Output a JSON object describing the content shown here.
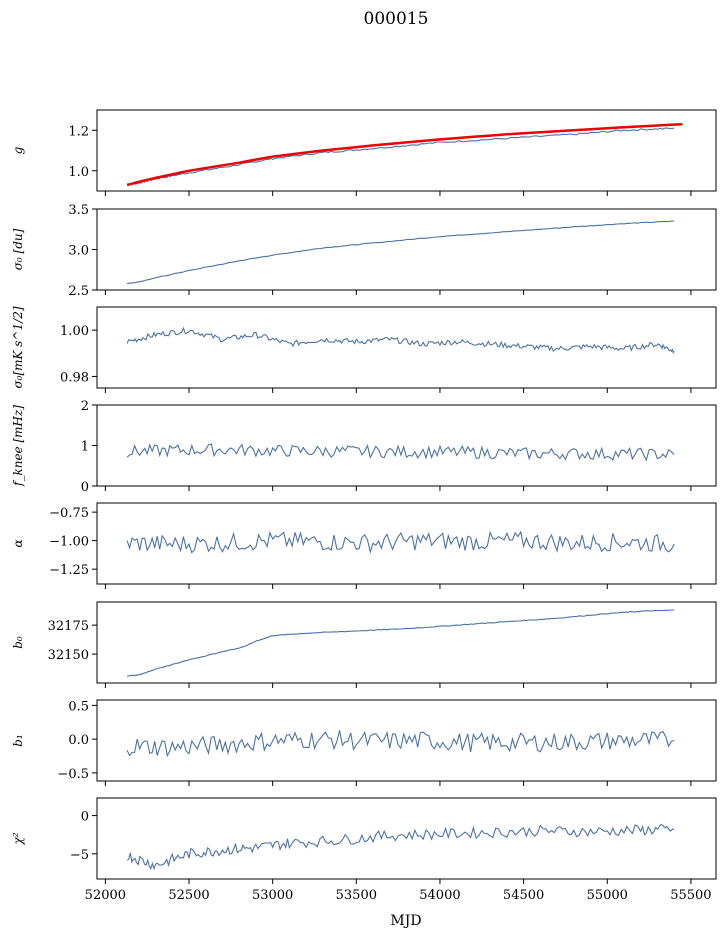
{
  "figure_title": "000015",
  "xlabel": "MJD",
  "colors": {
    "series": "#4c72a6",
    "fit": "#ee0000",
    "axis": "#000000"
  },
  "chart_data": [
    {
      "type": "line",
      "ylabel": "g",
      "xlim": [
        51950,
        55650
      ],
      "ylim": [
        0.9,
        1.3
      ],
      "yticks": [
        1.0,
        1.2
      ],
      "ytick_labels": [
        "1.0",
        "1.2"
      ],
      "xticks": [
        52000,
        52500,
        53000,
        53500,
        54000,
        54500,
        55000,
        55500
      ],
      "series": [
        {
          "x": [
            52130,
            52200,
            52300,
            52500,
            52800,
            53000,
            53300,
            53600,
            54000,
            54400,
            54800,
            55100,
            55400
          ],
          "y": [
            0.93,
            0.94,
            0.96,
            0.99,
            1.03,
            1.06,
            1.09,
            1.11,
            1.14,
            1.16,
            1.18,
            1.2,
            1.21
          ]
        },
        {
          "style": "fit",
          "x": [
            52130,
            52200,
            52300,
            52500,
            52800,
            53000,
            53300,
            53600,
            54000,
            54400,
            54800,
            55100,
            55450
          ],
          "y": [
            0.93,
            0.945,
            0.965,
            1.0,
            1.04,
            1.07,
            1.1,
            1.125,
            1.155,
            1.18,
            1.2,
            1.215,
            1.23
          ]
        }
      ]
    },
    {
      "type": "line",
      "ylabel": "σ₀ [du]",
      "xlim": [
        51950,
        55650
      ],
      "ylim": [
        2.5,
        3.5
      ],
      "yticks": [
        2.5,
        3.0,
        3.5
      ],
      "ytick_labels": [
        "2.5",
        "3.0",
        "3.5"
      ],
      "xticks": [
        52000,
        52500,
        53000,
        53500,
        54000,
        54500,
        55000,
        55500
      ],
      "series": [
        {
          "x": [
            52130,
            52200,
            52300,
            52500,
            52800,
            53000,
            53300,
            53600,
            54000,
            54400,
            54800,
            55100,
            55400
          ],
          "y": [
            2.58,
            2.6,
            2.65,
            2.74,
            2.86,
            2.93,
            3.02,
            3.08,
            3.16,
            3.22,
            3.28,
            3.32,
            3.35
          ]
        }
      ]
    },
    {
      "type": "line",
      "ylabel": "σ₀[mK s^1/2]",
      "xlim": [
        51950,
        55650
      ],
      "ylim": [
        0.975,
        1.01
      ],
      "yticks": [
        0.98,
        1.0
      ],
      "ytick_labels": [
        "0.98",
        "1.00"
      ],
      "xticks": [
        52000,
        52500,
        53000,
        53500,
        54000,
        54500,
        55000,
        55500
      ],
      "series": [
        {
          "x": [
            52130,
            52300,
            52500,
            52700,
            52900,
            53100,
            53300,
            53500,
            53700,
            53900,
            54100,
            54300,
            54500,
            54700,
            54900,
            55100,
            55300,
            55400
          ],
          "y": [
            0.995,
            0.998,
            1.0,
            0.996,
            0.998,
            0.994,
            0.996,
            0.995,
            0.996,
            0.994,
            0.995,
            0.994,
            0.993,
            0.992,
            0.993,
            0.992,
            0.994,
            0.991
          ]
        }
      ]
    },
    {
      "type": "line",
      "ylabel": "f_knee [mHz]",
      "xlim": [
        51950,
        55650
      ],
      "ylim": [
        0,
        2
      ],
      "yticks": [
        0,
        1,
        2
      ],
      "ytick_labels": [
        "0",
        "1",
        "2"
      ],
      "xticks": [
        52000,
        52500,
        53000,
        53500,
        54000,
        54500,
        55000,
        55500
      ],
      "series": [
        {
          "x": [
            52130,
            52400,
            52700,
            53000,
            53300,
            53600,
            53900,
            54200,
            54500,
            54800,
            55100,
            55400
          ],
          "y": [
            0.85,
            0.88,
            0.9,
            0.87,
            0.86,
            0.85,
            0.84,
            0.83,
            0.8,
            0.8,
            0.79,
            0.78
          ]
        }
      ]
    },
    {
      "type": "line",
      "ylabel": "α",
      "xlim": [
        51950,
        55650
      ],
      "ylim": [
        -1.38,
        -0.67
      ],
      "yticks": [
        -1.25,
        -1.0,
        -0.75
      ],
      "ytick_labels": [
        "−1.25",
        "−1.00",
        "−0.75"
      ],
      "xticks": [
        52000,
        52500,
        53000,
        53500,
        54000,
        54500,
        55000,
        55500
      ],
      "series": [
        {
          "x": [
            52130,
            52400,
            52700,
            53000,
            53300,
            53600,
            53900,
            54200,
            54500,
            54800,
            55100,
            55400
          ],
          "y": [
            -1.02,
            -1.03,
            -1.02,
            -1.0,
            -1.01,
            -1.02,
            -1.0,
            -1.01,
            -1.0,
            -1.02,
            -1.01,
            -1.03
          ]
        }
      ]
    },
    {
      "type": "line",
      "ylabel": "b₀",
      "xlim": [
        51950,
        55650
      ],
      "ylim": [
        32125,
        32195
      ],
      "yticks": [
        32150,
        32175
      ],
      "ytick_labels": [
        "32150",
        "32175"
      ],
      "xticks": [
        52000,
        52500,
        53000,
        53500,
        54000,
        54500,
        55000,
        55500
      ],
      "series": [
        {
          "x": [
            52130,
            52200,
            52300,
            52500,
            52700,
            52820,
            52900,
            53000,
            53200,
            53500,
            53800,
            54100,
            54400,
            54700,
            55000,
            55200,
            55400
          ],
          "y": [
            32131,
            32132,
            32137,
            32145,
            32152,
            32156,
            32161,
            32166,
            32168,
            32170,
            32172,
            32175,
            32178,
            32181,
            32185,
            32187,
            32188
          ]
        }
      ]
    },
    {
      "type": "line",
      "ylabel": "b₁",
      "xlim": [
        51950,
        55650
      ],
      "ylim": [
        -0.62,
        0.58
      ],
      "yticks": [
        -0.5,
        0.0,
        0.5
      ],
      "ytick_labels": [
        "−0.5",
        "0.0",
        "0.5"
      ],
      "xticks": [
        52000,
        52500,
        53000,
        53500,
        54000,
        54500,
        55000,
        55500
      ],
      "series": [
        {
          "x": [
            52130,
            52400,
            52700,
            53000,
            53300,
            53600,
            53900,
            54200,
            54500,
            54800,
            55100,
            55400
          ],
          "y": [
            -0.1,
            -0.12,
            -0.08,
            -0.02,
            0.0,
            -0.03,
            -0.02,
            -0.05,
            -0.05,
            -0.04,
            -0.02,
            -0.02
          ]
        }
      ]
    },
    {
      "type": "line",
      "ylabel": "χ²",
      "xlim": [
        51950,
        55650
      ],
      "ylim": [
        -8.3,
        2.3
      ],
      "yticks": [
        -5,
        0
      ],
      "ytick_labels": [
        "−5",
        "0"
      ],
      "xticks": [
        52000,
        52500,
        53000,
        53500,
        54000,
        54500,
        55000,
        55500
      ],
      "xtick_labels": [
        "52000",
        "52500",
        "53000",
        "53500",
        "54000",
        "54500",
        "55000",
        "55500"
      ],
      "series": [
        {
          "x": [
            52130,
            52300,
            52500,
            52700,
            52900,
            53100,
            53400,
            53700,
            54000,
            54300,
            54600,
            54900,
            55200,
            55400
          ],
          "y": [
            -5.2,
            -6.5,
            -5.0,
            -4.5,
            -4.2,
            -3.6,
            -3.2,
            -2.6,
            -2.4,
            -2.2,
            -2.0,
            -2.1,
            -1.9,
            -1.8
          ]
        }
      ]
    }
  ]
}
